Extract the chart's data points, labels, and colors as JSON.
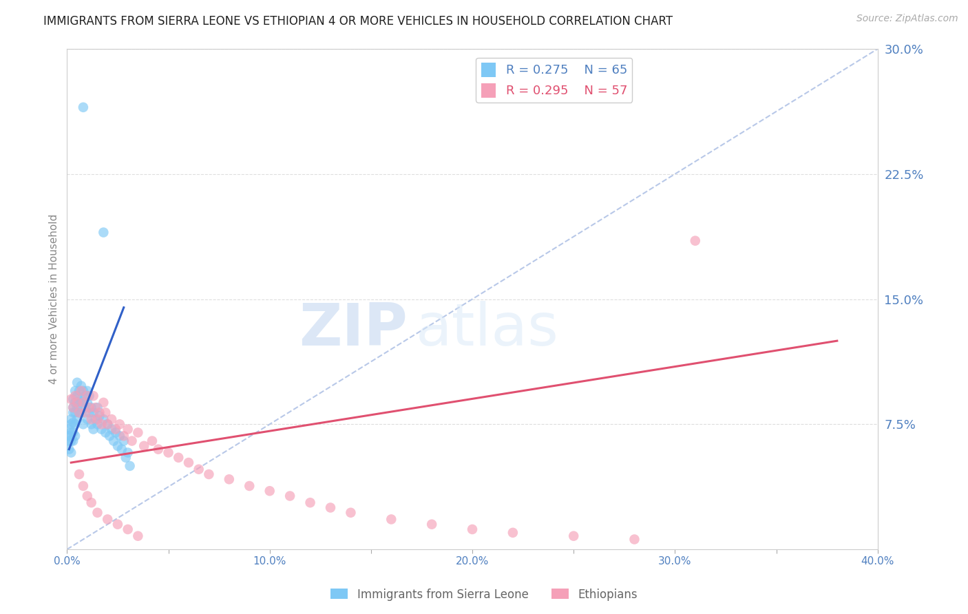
{
  "title": "IMMIGRANTS FROM SIERRA LEONE VS ETHIOPIAN 4 OR MORE VEHICLES IN HOUSEHOLD CORRELATION CHART",
  "source": "Source: ZipAtlas.com",
  "ylabel": "4 or more Vehicles in Household",
  "xlim": [
    0.0,
    0.4
  ],
  "ylim": [
    0.0,
    0.3
  ],
  "xticks": [
    0.0,
    0.05,
    0.1,
    0.15,
    0.2,
    0.25,
    0.3,
    0.35,
    0.4
  ],
  "yticks_right": [
    0.075,
    0.15,
    0.225,
    0.3
  ],
  "ytick_labels_right": [
    "7.5%",
    "15.0%",
    "22.5%",
    "30.0%"
  ],
  "xtick_labels": [
    "0.0%",
    "",
    "10.0%",
    "",
    "20.0%",
    "",
    "30.0%",
    "",
    "40.0%"
  ],
  "color_blue": "#7EC8F5",
  "color_pink": "#F5A0B8",
  "color_blue_line": "#3060C8",
  "color_pink_line": "#E05070",
  "color_diag": "#B8C8E8",
  "label_blue": "Immigrants from Sierra Leone",
  "label_pink": "Ethiopians",
  "watermark_zip": "ZIP",
  "watermark_atlas": "atlas",
  "background_color": "#FFFFFF",
  "grid_color": "#DEDEDE",
  "title_color": "#222222",
  "tick_color": "#5080C0",
  "ylabel_color": "#888888",
  "source_color": "#AAAAAA",
  "legend_blue_r": "R = 0.275",
  "legend_blue_n": "N = 65",
  "legend_pink_r": "R = 0.295",
  "legend_pink_n": "N = 57",
  "blue_scatter_x": [
    0.001,
    0.001,
    0.001,
    0.001,
    0.002,
    0.002,
    0.002,
    0.002,
    0.002,
    0.003,
    0.003,
    0.003,
    0.003,
    0.003,
    0.003,
    0.004,
    0.004,
    0.004,
    0.004,
    0.004,
    0.005,
    0.005,
    0.005,
    0.005,
    0.006,
    0.006,
    0.006,
    0.007,
    0.007,
    0.007,
    0.008,
    0.008,
    0.008,
    0.009,
    0.009,
    0.01,
    0.01,
    0.01,
    0.011,
    0.011,
    0.012,
    0.012,
    0.013,
    0.013,
    0.014,
    0.015,
    0.015,
    0.016,
    0.017,
    0.018,
    0.019,
    0.02,
    0.021,
    0.022,
    0.023,
    0.024,
    0.025,
    0.026,
    0.027,
    0.028,
    0.029,
    0.03,
    0.031,
    0.008,
    0.018
  ],
  "blue_scatter_y": [
    0.072,
    0.068,
    0.065,
    0.06,
    0.078,
    0.075,
    0.07,
    0.065,
    0.058,
    0.09,
    0.085,
    0.082,
    0.076,
    0.07,
    0.065,
    0.095,
    0.088,
    0.082,
    0.075,
    0.068,
    0.1,
    0.092,
    0.085,
    0.078,
    0.095,
    0.088,
    0.082,
    0.098,
    0.09,
    0.082,
    0.095,
    0.088,
    0.075,
    0.092,
    0.085,
    0.095,
    0.088,
    0.078,
    0.092,
    0.082,
    0.085,
    0.075,
    0.082,
    0.072,
    0.078,
    0.085,
    0.075,
    0.08,
    0.072,
    0.078,
    0.07,
    0.075,
    0.068,
    0.072,
    0.065,
    0.07,
    0.062,
    0.068,
    0.06,
    0.065,
    0.055,
    0.058,
    0.05,
    0.265,
    0.19
  ],
  "pink_scatter_x": [
    0.002,
    0.003,
    0.004,
    0.005,
    0.006,
    0.007,
    0.008,
    0.009,
    0.01,
    0.011,
    0.012,
    0.013,
    0.014,
    0.015,
    0.016,
    0.017,
    0.018,
    0.019,
    0.02,
    0.022,
    0.024,
    0.026,
    0.028,
    0.03,
    0.032,
    0.035,
    0.038,
    0.042,
    0.045,
    0.05,
    0.055,
    0.06,
    0.065,
    0.07,
    0.08,
    0.09,
    0.1,
    0.11,
    0.12,
    0.13,
    0.14,
    0.16,
    0.18,
    0.2,
    0.22,
    0.25,
    0.28,
    0.006,
    0.008,
    0.01,
    0.012,
    0.015,
    0.02,
    0.025,
    0.03,
    0.035,
    0.31
  ],
  "pink_scatter_y": [
    0.09,
    0.085,
    0.092,
    0.088,
    0.082,
    0.095,
    0.088,
    0.082,
    0.092,
    0.085,
    0.078,
    0.092,
    0.085,
    0.078,
    0.082,
    0.075,
    0.088,
    0.082,
    0.075,
    0.078,
    0.072,
    0.075,
    0.068,
    0.072,
    0.065,
    0.07,
    0.062,
    0.065,
    0.06,
    0.058,
    0.055,
    0.052,
    0.048,
    0.045,
    0.042,
    0.038,
    0.035,
    0.032,
    0.028,
    0.025,
    0.022,
    0.018,
    0.015,
    0.012,
    0.01,
    0.008,
    0.006,
    0.045,
    0.038,
    0.032,
    0.028,
    0.022,
    0.018,
    0.015,
    0.012,
    0.008,
    0.185
  ],
  "blue_line_x": [
    0.001,
    0.028
  ],
  "blue_line_y": [
    0.06,
    0.145
  ],
  "pink_line_x": [
    0.002,
    0.38
  ],
  "pink_line_y": [
    0.052,
    0.125
  ]
}
